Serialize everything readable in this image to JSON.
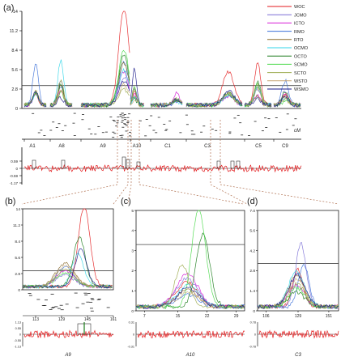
{
  "panels": {
    "a": "(a)",
    "b": "(b)",
    "c": "(c)",
    "d": "(d)"
  },
  "legend": [
    {
      "name": "WOC",
      "color": "#e31a1c"
    },
    {
      "name": "JCMO",
      "color": "#7b6fd6"
    },
    {
      "name": "ICTO",
      "color": "#d61cd6"
    },
    {
      "name": "RMO",
      "color": "#3a6fd8"
    },
    {
      "name": "RTO",
      "color": "#8a6a2a"
    },
    {
      "name": "OCMO",
      "color": "#33d6e8"
    },
    {
      "name": "OCTO",
      "color": "#1a7a1a"
    },
    {
      "name": "SCMO",
      "color": "#48d948"
    },
    {
      "name": "SCTO",
      "color": "#9aa84a"
    },
    {
      "name": "WSTO",
      "color": "#c8a878"
    },
    {
      "name": "WSMO",
      "color": "#1a1a8a"
    }
  ],
  "chart_data": [
    {
      "panel": "(a)",
      "type": "line",
      "y_ticks": [
        "0",
        "2.8",
        "5.6",
        "8.4",
        "11.2",
        "14"
      ],
      "ylim": [
        0,
        14
      ],
      "threshold": 3.3,
      "x_unit": "cM",
      "chromosomes": [
        "A1",
        "A8",
        "A9",
        "A10",
        "C1",
        "C3",
        "C5",
        "C9"
      ],
      "peaks": [
        {
          "chromosome": "A1",
          "max_lod": 5.8
        },
        {
          "chromosome": "A8",
          "max_lod": 6.5
        },
        {
          "chromosome": "A9",
          "max_lod": 14.0
        },
        {
          "chromosome": "A10",
          "max_lod": 5.2
        },
        {
          "chromosome": "C1",
          "max_lod": 1.6
        },
        {
          "chromosome": "C3",
          "max_lod": 4.8
        },
        {
          "chromosome": "C5",
          "max_lod": 6.0
        },
        {
          "chromosome": "C9",
          "max_lod": 3.5
        }
      ],
      "effect_y_ticks": [
        "0.59",
        "0",
        "-0.59",
        "-1.17"
      ]
    },
    {
      "panel": "(b)",
      "type": "line",
      "chromosome": "A9",
      "y_ticks": [
        "0",
        "2.8",
        "5.6",
        "8.4",
        "11.2",
        "14"
      ],
      "ylim": [
        0,
        14
      ],
      "threshold": 3.3,
      "x_ticks": [
        "113",
        "129",
        "145",
        "161"
      ],
      "xlim": [
        105,
        161
      ],
      "series_peaks": [
        {
          "name": "WOC",
          "x": 143,
          "y": 14.0
        },
        {
          "name": "OCTO",
          "x": 140,
          "y": 8.6
        },
        {
          "name": "OCMO",
          "x": 139,
          "y": 5.6
        },
        {
          "name": "WSMO",
          "x": 141,
          "y": 6.4
        }
      ],
      "effect_y_ticks": [
        "1.13",
        "0.55",
        "0",
        "-0.55",
        "-1.13"
      ]
    },
    {
      "panel": "(c)",
      "type": "line",
      "chromosome": "A10",
      "y_ticks": [
        "0",
        "1",
        "2",
        "3",
        "4",
        "5"
      ],
      "ylim": [
        0,
        5
      ],
      "threshold": 3.3,
      "x_ticks": [
        "7",
        "15",
        "22",
        "29"
      ],
      "xlim": [
        5,
        31
      ],
      "series_peaks": [
        {
          "name": "SCMO",
          "x": 20,
          "y": 4.9
        },
        {
          "name": "OCTO",
          "x": 21,
          "y": 3.6
        },
        {
          "name": "SCTO",
          "x": 16,
          "y": 2.1
        }
      ],
      "effect_y_ticks": [
        "0.31",
        "0",
        "-0.31"
      ]
    },
    {
      "panel": "(d)",
      "type": "line",
      "chromosome": "C3",
      "y_ticks": [
        "0",
        "1.4",
        "2.8",
        "4.2",
        "5.6",
        "7.0"
      ],
      "ylim": [
        0,
        7
      ],
      "threshold": 3.3,
      "x_ticks": [
        "106",
        "129",
        "151"
      ],
      "xlim": [
        100,
        158
      ],
      "series_peaks": [
        {
          "name": "JCMO",
          "x": 131,
          "y": 4.4
        },
        {
          "name": "RMO",
          "x": 133,
          "y": 3.0
        },
        {
          "name": "WOC",
          "x": 129,
          "y": 2.6
        }
      ],
      "effect_y_ticks": [
        "0.78",
        "0",
        "-0.78"
      ]
    }
  ]
}
